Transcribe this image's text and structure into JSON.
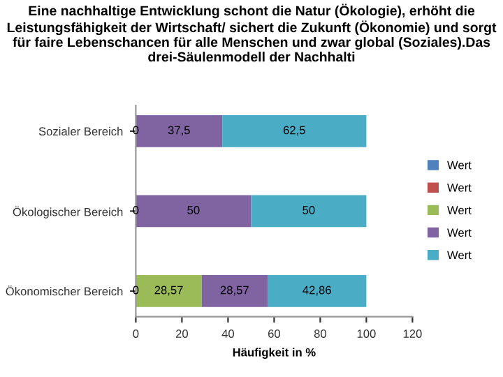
{
  "chart_data": {
    "type": "bar",
    "orientation": "horizontal",
    "stacked": true,
    "title": "Eine nachhaltige Entwicklung schont die Natur (Ökologie), erhöht die Leistungsfähigkeit der Wirtschaft/ sichert die Zukunft (Ökonomie) und sorgt für faire Lebenschancen für alle Menschen und zwar global (Soziales).Das drei-Säulenmodell der Nachhalti",
    "xlabel": "Häufigkeit in %",
    "categories": [
      "Sozialer Bereich",
      "Ökologischer Bereich",
      "Ökonomischer Bereich"
    ],
    "series": [
      {
        "name": "Wert",
        "color": "#4f81bd",
        "values": [
          0,
          0,
          0
        ],
        "value_labels": [
          "0",
          "0",
          "0"
        ]
      },
      {
        "name": "Wert",
        "color": "#c0504d",
        "values": [
          0,
          0,
          0
        ],
        "value_labels": [
          null,
          null,
          null
        ]
      },
      {
        "name": "Wert",
        "color": "#9bbb59",
        "values": [
          0,
          0,
          28.57
        ],
        "value_labels": [
          null,
          null,
          "28,57"
        ]
      },
      {
        "name": "Wert",
        "color": "#8064a2",
        "values": [
          37.5,
          50,
          28.57
        ],
        "value_labels": [
          "37,5",
          "50",
          "28,57"
        ]
      },
      {
        "name": "Wert",
        "color": "#4bacc6",
        "values": [
          62.5,
          50,
          42.86
        ],
        "value_labels": [
          "62,5",
          "50",
          "42,86"
        ]
      }
    ],
    "xlim": [
      0,
      120
    ],
    "xticks": [
      0,
      20,
      40,
      60,
      80,
      100,
      120
    ],
    "grid": false,
    "legend": "right"
  }
}
